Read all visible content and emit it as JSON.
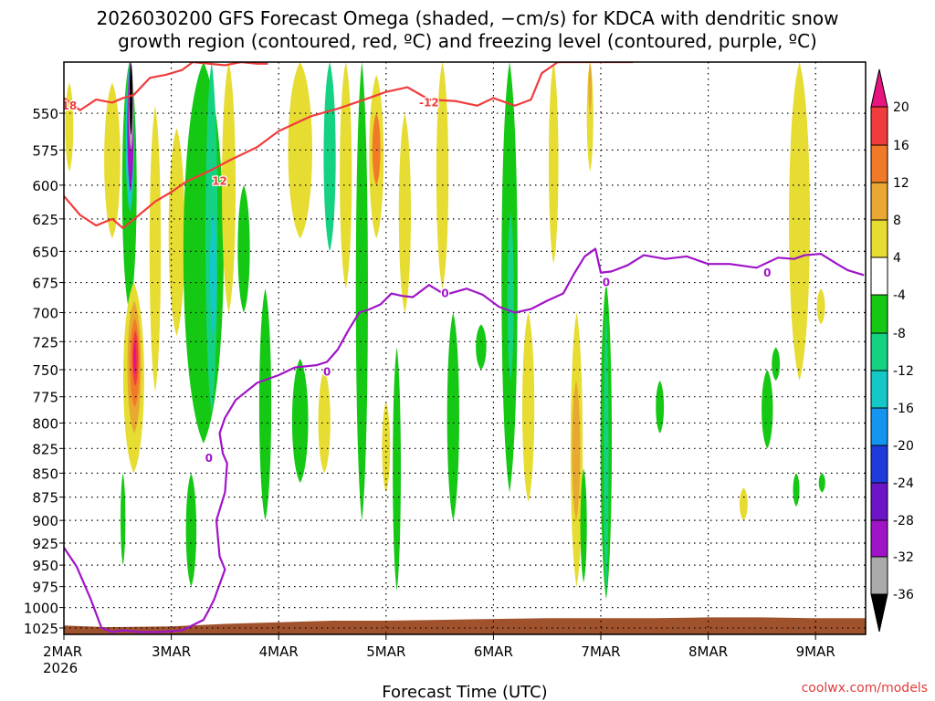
{
  "chart_data": {
    "type": "heatmap",
    "title_lines": [
      "2026030200 GFS Forecast Omega (shaded, −cm/s) for KDCA with dendritic snow",
      "growth region (contoured, red, ºC) and freezing level (contoured, purple, ºC)"
    ],
    "xlabel": "Forecast Time (UTC)",
    "ylabel": "",
    "x_ticks": [
      {
        "x": 0,
        "label": "2MAR",
        "sub": "2026"
      },
      {
        "x": 1,
        "label": "3MAR",
        "sub": ""
      },
      {
        "x": 2,
        "label": "4MAR",
        "sub": ""
      },
      {
        "x": 3,
        "label": "5MAR",
        "sub": ""
      },
      {
        "x": 4,
        "label": "6MAR",
        "sub": ""
      },
      {
        "x": 5,
        "label": "7MAR",
        "sub": ""
      },
      {
        "x": 6,
        "label": "8MAR",
        "sub": ""
      },
      {
        "x": 7,
        "label": "9MAR",
        "sub": ""
      }
    ],
    "xlim": [
      0,
      7.45
    ],
    "y_ticks": [
      550,
      575,
      600,
      625,
      650,
      675,
      700,
      725,
      750,
      775,
      800,
      825,
      850,
      875,
      900,
      925,
      950,
      975,
      1000,
      1025
    ],
    "ylim": [
      1033,
      517
    ],
    "y_scale": "log-pressure",
    "grid": true,
    "colorbar": {
      "levels": [
        "20",
        "16",
        "12",
        "8",
        "4",
        "-4",
        "-8",
        "-12",
        "-16",
        "-20",
        "-24",
        "-28",
        "-32",
        "-36"
      ],
      "colors": [
        "#e8147f",
        "#f03c3c",
        "#f07a28",
        "#e8a832",
        "#e6dc32",
        "#ffffff",
        "#14c814",
        "#14d282",
        "#14c8c8",
        "#1496f0",
        "#1e3cdc",
        "#6e14c8",
        "#a014c8",
        "#aaaaaa",
        "#000000"
      ]
    },
    "omega_patches": [
      {
        "x0": 0.0,
        "x1": 0.1,
        "p_top": 530,
        "p_bot": 590,
        "level": "4"
      },
      {
        "x0": 0.35,
        "x1": 0.55,
        "p_top": 530,
        "p_bot": 640,
        "level": "4"
      },
      {
        "x0": 0.52,
        "x1": 0.7,
        "p_top": 517,
        "p_bot": 700,
        "level": "-8"
      },
      {
        "x0": 0.56,
        "x1": 0.67,
        "p_top": 517,
        "p_bot": 620,
        "level": "-16"
      },
      {
        "x0": 0.58,
        "x1": 0.66,
        "p_top": 517,
        "p_bot": 605,
        "level": "-28"
      },
      {
        "x0": 0.595,
        "x1": 0.655,
        "p_top": 517,
        "p_bot": 575,
        "level": "-32"
      },
      {
        "x0": 0.605,
        "x1": 0.645,
        "p_top": 517,
        "p_bot": 565,
        "level": "-36"
      },
      {
        "x0": 0.52,
        "x1": 0.78,
        "p_top": 675,
        "p_bot": 850,
        "level": "4"
      },
      {
        "x0": 0.57,
        "x1": 0.74,
        "p_top": 690,
        "p_bot": 810,
        "level": "8"
      },
      {
        "x0": 0.6,
        "x1": 0.72,
        "p_top": 705,
        "p_bot": 785,
        "level": "12"
      },
      {
        "x0": 0.63,
        "x1": 0.7,
        "p_top": 715,
        "p_bot": 765,
        "level": "16"
      },
      {
        "x0": 0.64,
        "x1": 0.68,
        "p_top": 725,
        "p_bot": 755,
        "level": "20"
      },
      {
        "x0": 0.52,
        "x1": 0.58,
        "p_top": 850,
        "p_bot": 950,
        "level": "-8"
      },
      {
        "x0": 0.78,
        "x1": 0.92,
        "p_top": 545,
        "p_bot": 770,
        "level": "4"
      },
      {
        "x0": 0.95,
        "x1": 1.15,
        "p_top": 560,
        "p_bot": 720,
        "level": "4"
      },
      {
        "x0": 1.05,
        "x1": 1.55,
        "p_top": 517,
        "p_bot": 820,
        "level": "-8"
      },
      {
        "x0": 1.3,
        "x1": 1.45,
        "p_top": 517,
        "p_bot": 790,
        "level": "-12"
      },
      {
        "x0": 1.35,
        "x1": 1.43,
        "p_top": 620,
        "p_bot": 720,
        "level": "-16"
      },
      {
        "x0": 1.12,
        "x1": 1.25,
        "p_top": 850,
        "p_bot": 975,
        "level": "-8"
      },
      {
        "x0": 1.45,
        "x1": 1.62,
        "p_top": 517,
        "p_bot": 700,
        "level": "4"
      },
      {
        "x0": 1.6,
        "x1": 1.75,
        "p_top": 600,
        "p_bot": 700,
        "level": "-8"
      },
      {
        "x0": 1.8,
        "x1": 1.95,
        "p_top": 680,
        "p_bot": 900,
        "level": "-8"
      },
      {
        "x0": 2.05,
        "x1": 2.35,
        "p_top": 517,
        "p_bot": 640,
        "level": "4"
      },
      {
        "x0": 2.1,
        "x1": 2.3,
        "p_top": 740,
        "p_bot": 860,
        "level": "-8"
      },
      {
        "x0": 2.35,
        "x1": 2.5,
        "p_top": 750,
        "p_bot": 850,
        "level": "4"
      },
      {
        "x0": 2.4,
        "x1": 2.55,
        "p_top": 517,
        "p_bot": 650,
        "level": "-12"
      },
      {
        "x0": 2.55,
        "x1": 2.7,
        "p_top": 517,
        "p_bot": 680,
        "level": "4"
      },
      {
        "x0": 2.7,
        "x1": 2.85,
        "p_top": 517,
        "p_bot": 900,
        "level": "-8"
      },
      {
        "x0": 2.82,
        "x1": 3.0,
        "p_top": 525,
        "p_bot": 640,
        "level": "4"
      },
      {
        "x0": 2.86,
        "x1": 2.96,
        "p_top": 550,
        "p_bot": 600,
        "level": "12"
      },
      {
        "x0": 2.95,
        "x1": 3.05,
        "p_top": 780,
        "p_bot": 870,
        "level": "4"
      },
      {
        "x0": 3.1,
        "x1": 3.25,
        "p_top": 550,
        "p_bot": 700,
        "level": "4"
      },
      {
        "x0": 3.05,
        "x1": 3.15,
        "p_top": 730,
        "p_bot": 980,
        "level": "-8"
      },
      {
        "x0": 3.45,
        "x1": 3.6,
        "p_top": 517,
        "p_bot": 680,
        "level": "4"
      },
      {
        "x0": 3.55,
        "x1": 3.7,
        "p_top": 700,
        "p_bot": 900,
        "level": "-8"
      },
      {
        "x0": 3.82,
        "x1": 3.95,
        "p_top": 710,
        "p_bot": 750,
        "level": "-8"
      },
      {
        "x0": 4.05,
        "x1": 4.25,
        "p_top": 517,
        "p_bot": 870,
        "level": "-8"
      },
      {
        "x0": 4.12,
        "x1": 4.2,
        "p_top": 620,
        "p_bot": 760,
        "level": "-12"
      },
      {
        "x0": 4.25,
        "x1": 4.4,
        "p_top": 700,
        "p_bot": 880,
        "level": "4"
      },
      {
        "x0": 4.5,
        "x1": 4.62,
        "p_top": 517,
        "p_bot": 660,
        "level": "4"
      },
      {
        "x0": 4.7,
        "x1": 4.85,
        "p_top": 700,
        "p_bot": 975,
        "level": "4"
      },
      {
        "x0": 4.72,
        "x1": 4.82,
        "p_top": 760,
        "p_bot": 900,
        "level": "8"
      },
      {
        "x0": 4.86,
        "x1": 4.94,
        "p_top": 517,
        "p_bot": 590,
        "level": "4"
      },
      {
        "x0": 4.88,
        "x1": 4.92,
        "p_top": 517,
        "p_bot": 550,
        "level": "8"
      },
      {
        "x0": 4.8,
        "x1": 4.88,
        "p_top": 845,
        "p_bot": 970,
        "level": "-8"
      },
      {
        "x0": 4.98,
        "x1": 5.12,
        "p_top": 675,
        "p_bot": 990,
        "level": "-8"
      },
      {
        "x0": 5.02,
        "x1": 5.08,
        "p_top": 700,
        "p_bot": 985,
        "level": "-12"
      },
      {
        "x0": 5.5,
        "x1": 5.6,
        "p_top": 760,
        "p_bot": 810,
        "level": "-8"
      },
      {
        "x0": 6.28,
        "x1": 6.38,
        "p_top": 865,
        "p_bot": 900,
        "level": "4"
      },
      {
        "x0": 6.48,
        "x1": 6.62,
        "p_top": 750,
        "p_bot": 825,
        "level": "-8"
      },
      {
        "x0": 6.58,
        "x1": 6.68,
        "p_top": 730,
        "p_bot": 760,
        "level": "-8"
      },
      {
        "x0": 6.72,
        "x1": 6.98,
        "p_top": 517,
        "p_bot": 760,
        "level": "4"
      },
      {
        "x0": 6.78,
        "x1": 6.86,
        "p_top": 850,
        "p_bot": 885,
        "level": "-8"
      },
      {
        "x0": 7.0,
        "x1": 7.1,
        "p_top": 680,
        "p_bot": 710,
        "level": "4"
      },
      {
        "x0": 7.02,
        "x1": 7.1,
        "p_top": 850,
        "p_bot": 870,
        "level": "-8"
      }
    ],
    "terrain": {
      "color": "#a0522d",
      "x": [
        0,
        0.4,
        1.0,
        1.5,
        2.0,
        2.5,
        3.0,
        3.5,
        4.0,
        4.5,
        5.0,
        5.5,
        6.0,
        6.5,
        7.0,
        7.45
      ],
      "p": [
        1022,
        1024,
        1023,
        1020,
        1018,
        1016,
        1016,
        1015,
        1014,
        1013,
        1013,
        1013,
        1012,
        1012,
        1013,
        1013
      ]
    },
    "series": [
      {
        "color": "#f03c3c",
        "labels": [
          {
            "text": "18",
            "x": 0.05,
            "p": 545
          }
        ],
        "x": [
          0,
          0.15,
          0.3,
          0.45,
          0.55,
          0.65,
          0.8,
          0.95,
          1.1,
          1.2,
          1.35,
          1.5,
          1.65,
          1.8,
          1.9
        ],
        "p": [
          540,
          548,
          541,
          543,
          540,
          538,
          527,
          525,
          522,
          517,
          518,
          519,
          517,
          518,
          518
        ]
      },
      {
        "color": "#f03c3c",
        "labels": [
          {
            "text": "12",
            "x": 1.45,
            "p": 597
          },
          {
            "text": "-12",
            "x": 3.4,
            "p": 543
          }
        ],
        "x": [
          0,
          0.15,
          0.3,
          0.45,
          0.55,
          0.7,
          0.85,
          1.0,
          1.15,
          1.35,
          1.55,
          1.8,
          2.0,
          2.3,
          2.55,
          2.8,
          3.0,
          3.2,
          3.4,
          3.65,
          3.85,
          4.0,
          4.2,
          4.35,
          4.45,
          4.6,
          4.8,
          5.0,
          5.3
        ],
        "p": [
          608,
          622,
          630,
          625,
          632,
          622,
          612,
          605,
          597,
          590,
          582,
          573,
          562,
          552,
          547,
          541,
          536,
          533,
          541,
          542,
          545,
          540,
          545,
          541,
          524,
          517,
          517,
          517,
          517
        ]
      },
      {
        "color": "#a014c8",
        "labels": [
          {
            "text": "0",
            "x": 1.35,
            "p": 835
          },
          {
            "text": "0",
            "x": 2.45,
            "p": 752
          },
          {
            "text": "0",
            "x": 3.55,
            "p": 684
          },
          {
            "text": "0",
            "x": 5.05,
            "p": 675
          },
          {
            "text": "0",
            "x": 6.55,
            "p": 667
          }
        ],
        "x": [
          0,
          0.12,
          0.25,
          0.35,
          0.45,
          0.55,
          0.7,
          0.9,
          1.1,
          1.3,
          1.35,
          1.4,
          1.5,
          1.45,
          1.42,
          1.5,
          1.52,
          1.48,
          1.45,
          1.5,
          1.6,
          1.8,
          2.0,
          2.15,
          2.35,
          2.45,
          2.55,
          2.65,
          2.75,
          2.85,
          2.95,
          3.05,
          3.15,
          3.25,
          3.4,
          3.55,
          3.75,
          3.9,
          4.05,
          4.2,
          4.35,
          4.5,
          4.65,
          4.75,
          4.85,
          4.95,
          5.0,
          5.1,
          5.25,
          5.4,
          5.6,
          5.8,
          6.0,
          6.2,
          6.45,
          6.65,
          6.8,
          6.9,
          7.05,
          7.2,
          7.3,
          7.45
        ],
        "p": [
          930,
          952,
          990,
          1025,
          1030,
          1028,
          1030,
          1030,
          1028,
          1015,
          1003,
          990,
          955,
          940,
          900,
          870,
          840,
          830,
          810,
          795,
          778,
          762,
          755,
          748,
          746,
          743,
          732,
          715,
          700,
          697,
          693,
          684,
          686,
          687,
          677,
          685,
          680,
          685,
          695,
          700,
          697,
          690,
          684,
          668,
          654,
          648,
          667,
          666,
          661,
          653,
          656,
          654,
          660,
          660,
          663,
          655,
          656,
          653,
          652,
          660,
          665,
          669
        ]
      }
    ],
    "credit": "coolwx.com/models"
  }
}
